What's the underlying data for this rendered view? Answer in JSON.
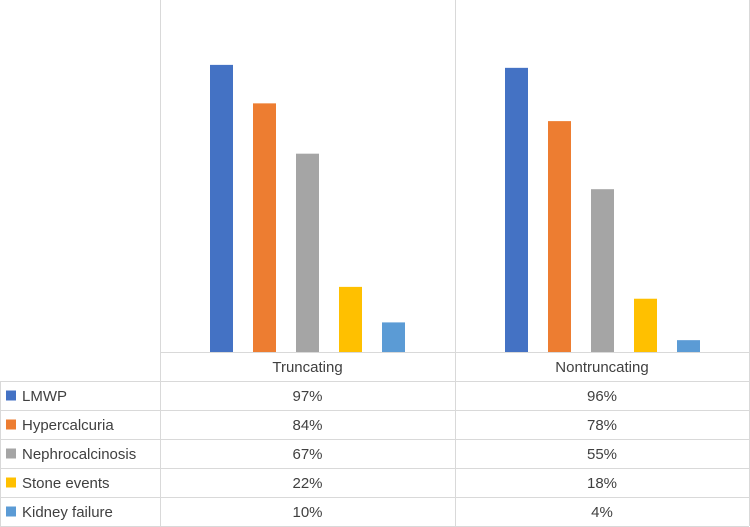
{
  "chart_data": {
    "type": "bar",
    "categories": [
      "Truncating",
      "Nontruncating"
    ],
    "series": [
      {
        "name": "LMWP",
        "values": [
          97,
          96
        ],
        "labels": [
          "97%",
          "96%"
        ],
        "color": "#4472C4"
      },
      {
        "name": "Hypercalcuria",
        "values": [
          84,
          78
        ],
        "labels": [
          "84%",
          "78%"
        ],
        "color": "#ED7D31"
      },
      {
        "name": "Nephrocalcinosis",
        "values": [
          67,
          55
        ],
        "labels": [
          "67%",
          "55%"
        ],
        "color": "#A5A5A5"
      },
      {
        "name": "Stone events",
        "values": [
          22,
          18
        ],
        "labels": [
          "22%",
          "18%"
        ],
        "color": "#FFC000"
      },
      {
        "name": "Kidney failure",
        "values": [
          10,
          4
        ],
        "labels": [
          "10%",
          "4%"
        ],
        "color": "#5B9BD5"
      }
    ],
    "ylim": [
      0,
      100
    ],
    "unit": "%",
    "legend": "data-table",
    "grid": false
  }
}
